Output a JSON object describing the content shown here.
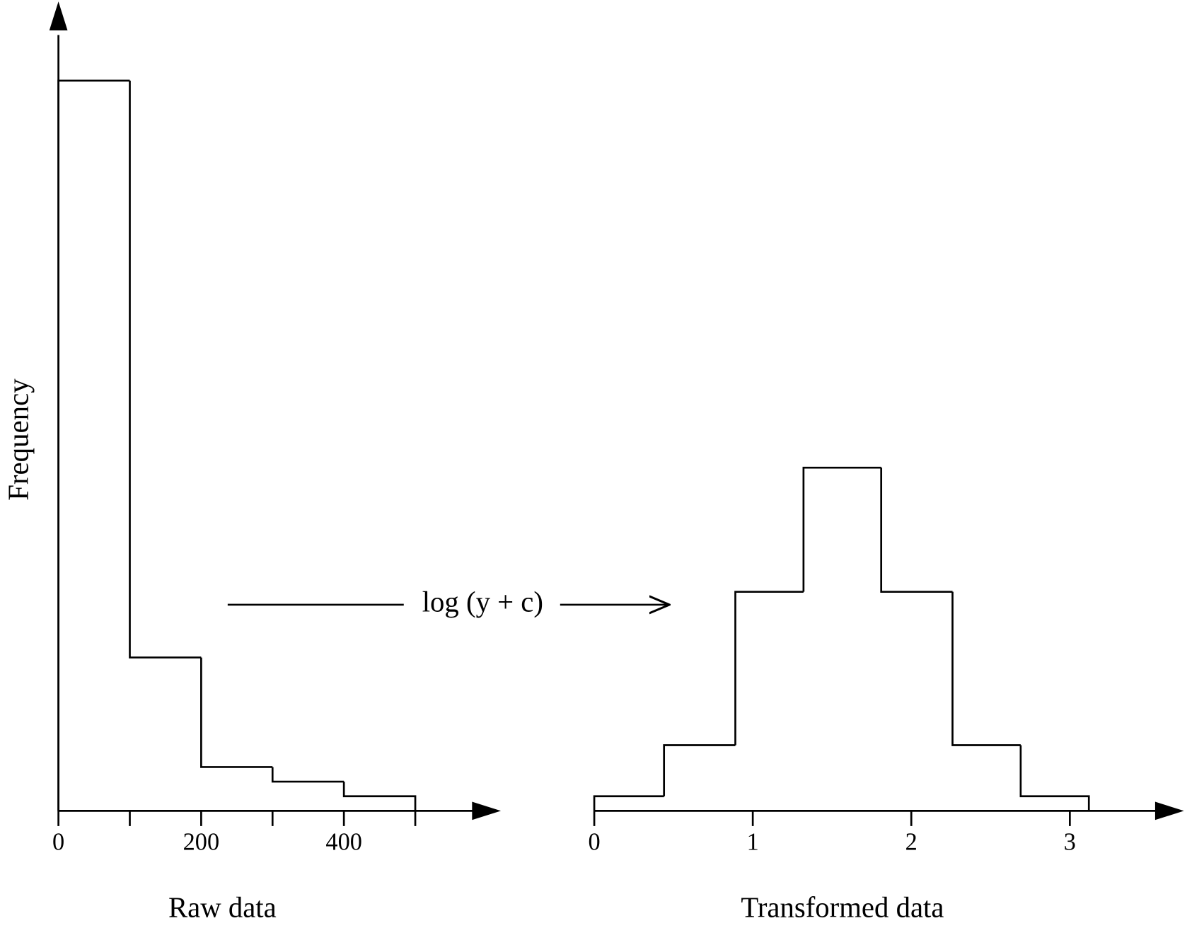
{
  "chart_data": [
    {
      "type": "histogram",
      "xlabel": "Raw data",
      "ylabel": "Frequency",
      "bins": [
        0,
        100,
        200,
        300,
        400,
        500
      ],
      "values": [
        100,
        21,
        6,
        4,
        2
      ],
      "xlim": [
        0,
        620
      ],
      "ylim": [
        0,
        110
      ],
      "xticks": [
        0,
        200,
        400
      ],
      "minor_xticks": [
        100,
        300,
        500
      ],
      "color": "#000000",
      "annotation": "log (y + c)"
    },
    {
      "type": "histogram",
      "xlabel": "Transformed data",
      "bins": [
        0,
        0.44,
        0.89,
        1.32,
        1.81,
        2.26,
        2.69,
        3.12
      ],
      "values": [
        2,
        9,
        30,
        47,
        30,
        9,
        2
      ],
      "xlim": [
        0,
        3.72
      ],
      "ylim": [
        0,
        110
      ],
      "xticks": [
        0,
        1,
        2,
        3
      ],
      "color": "#000000"
    }
  ]
}
